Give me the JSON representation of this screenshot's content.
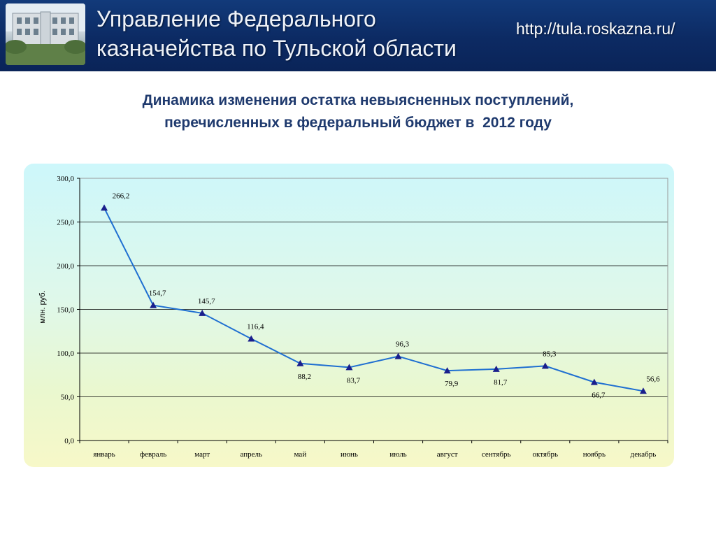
{
  "header": {
    "title_line1": "Управление Федерального",
    "title_line2": "казначейства по Тульской области",
    "url": "http://tula.roskazna.ru/"
  },
  "slide": {
    "title_line1": "Динамика изменения остатка невыясненных поступлений,",
    "title_line2": "перечисленных в федеральный бюджет в  2012 году"
  },
  "colors": {
    "banner": "#0c2a63",
    "line": "#1f6fd1",
    "marker": "#1a1f8c",
    "title": "#1f3a6e"
  },
  "chart_data": {
    "type": "line",
    "categories": [
      "январь",
      "февраль",
      "март",
      "апрель",
      "май",
      "июнь",
      "июль",
      "август",
      "сентябрь",
      "октябрь",
      "ноябрь",
      "декабрь"
    ],
    "series": [
      {
        "values": [
          266.2,
          154.7,
          145.7,
          116.4,
          88.2,
          83.7,
          96.3,
          79.9,
          81.7,
          85.3,
          66.7,
          56.6
        ],
        "labels": [
          "266,2",
          "154,7",
          "145,7",
          "116,4",
          "88,2",
          "83,7",
          "96,3",
          "79,9",
          "81,7",
          "85,3",
          "66,7",
          "56,6"
        ]
      }
    ],
    "ylabel": "млн. руб.",
    "ylim": [
      0,
      300
    ],
    "yticks": [
      0,
      50,
      100,
      150,
      200,
      250,
      300
    ],
    "ytick_labels": [
      "0,0",
      "50,0",
      "100,0",
      "150,0",
      "200,0",
      "250,0",
      "300,0"
    ],
    "grid": true,
    "marker": "triangle"
  }
}
